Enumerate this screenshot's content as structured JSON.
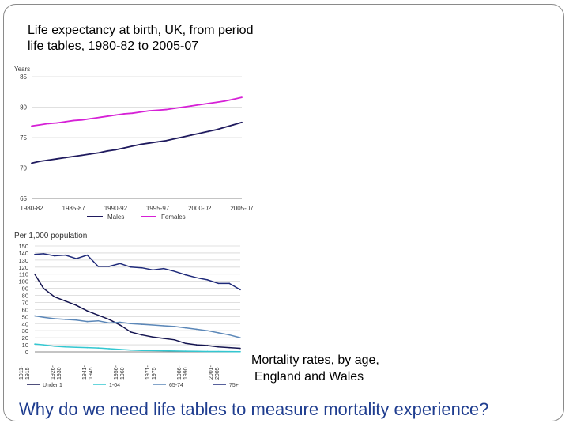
{
  "slide": {
    "title_line1": "Life expectancy at birth, UK, from period",
    "title_line2": "life tables, 1980-82 to 2005-07",
    "caption_line1": "Mortality rates, by age,",
    "caption_line2": "England and Wales",
    "question": "Why do we need life tables to measure mortality experience?"
  },
  "chart_data": [
    {
      "type": "line",
      "ylabel": "Years",
      "ylim": [
        65,
        85
      ],
      "yticks": [
        "65",
        "70",
        "75",
        "80",
        "85"
      ],
      "x": [
        1981,
        1982,
        1983,
        1984,
        1985,
        1986,
        1987,
        1988,
        1989,
        1990,
        1991,
        1992,
        1993,
        1994,
        1995,
        1996,
        1997,
        1998,
        1999,
        2000,
        2001,
        2002,
        2003,
        2004,
        2005,
        2006
      ],
      "xticks": [
        "1980-82",
        "1985-87",
        "1990-92",
        "1995-97",
        "2000-02",
        "2005-07"
      ],
      "series": [
        {
          "name": "Males",
          "color": "#1f1a5e",
          "values": [
            70.8,
            71.1,
            71.3,
            71.5,
            71.7,
            71.9,
            72.1,
            72.3,
            72.5,
            72.8,
            73.0,
            73.3,
            73.6,
            73.9,
            74.1,
            74.3,
            74.5,
            74.8,
            75.1,
            75.4,
            75.7,
            76.0,
            76.3,
            76.7,
            77.1,
            77.5
          ]
        },
        {
          "name": "Females",
          "color": "#d620d6",
          "values": [
            76.9,
            77.1,
            77.3,
            77.4,
            77.6,
            77.8,
            77.9,
            78.1,
            78.3,
            78.5,
            78.7,
            78.9,
            79.0,
            79.2,
            79.4,
            79.5,
            79.6,
            79.8,
            80.0,
            80.2,
            80.4,
            80.6,
            80.8,
            81.0,
            81.3,
            81.6
          ]
        }
      ]
    },
    {
      "type": "line",
      "ylabel": "Per 1,000 population",
      "ylim": [
        0,
        150
      ],
      "yticks": [
        "0",
        "10",
        "20",
        "30",
        "40",
        "50",
        "60",
        "70",
        "80",
        "90",
        "100",
        "110",
        "120",
        "130",
        "140",
        "150"
      ],
      "x": [
        1911,
        1915,
        1920,
        1925,
        1930,
        1935,
        1940,
        1945,
        1950,
        1955,
        1960,
        1965,
        1970,
        1975,
        1980,
        1985,
        1990,
        1995,
        2000,
        2005
      ],
      "xticks": [
        "1911-1915",
        "1926-1930",
        "1941-1945",
        "1956-1960",
        "1971-1975",
        "1986-1990",
        "2001-2005"
      ],
      "series": [
        {
          "name": "Under 1",
          "color": "#141450",
          "values": [
            110,
            90,
            78,
            72,
            66,
            58,
            52,
            46,
            38,
            28,
            24,
            21,
            19,
            17,
            12,
            10,
            9,
            7,
            6,
            5
          ]
        },
        {
          "name": "1-04",
          "color": "#33c7d1",
          "values": [
            11,
            10,
            8,
            7,
            6.5,
            6,
            5.5,
            4.5,
            3.5,
            2.5,
            2,
            1.8,
            1.5,
            1.2,
            1,
            0.8,
            0.6,
            0.5,
            0.4,
            0.3
          ]
        },
        {
          "name": "65-74",
          "color": "#5b87b8",
          "values": [
            51,
            49,
            47,
            46,
            45,
            43,
            44,
            41,
            42,
            40,
            39,
            38,
            37,
            36,
            34,
            32,
            30,
            27,
            24,
            20
          ]
        },
        {
          "name": "75+",
          "color": "#1f2a7a",
          "values": [
            138,
            139,
            136,
            137,
            132,
            137,
            121,
            121,
            125,
            120,
            119,
            116,
            118,
            114,
            109,
            105,
            102,
            97,
            97,
            88
          ]
        }
      ]
    }
  ]
}
